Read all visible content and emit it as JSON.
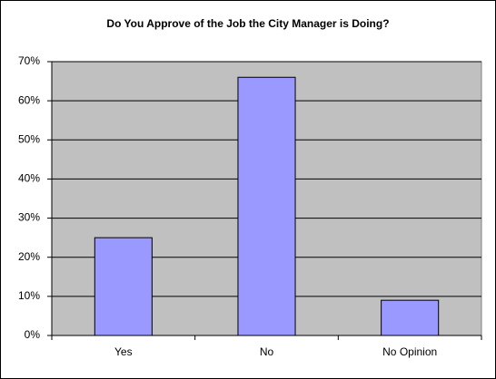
{
  "chart_data": {
    "type": "bar",
    "title": "Do You Approve of the Job the City Manager is Doing?",
    "categories": [
      "Yes",
      "No",
      "No Opinion"
    ],
    "values": [
      25,
      66,
      9
    ],
    "color": "#9999ff",
    "ylim": [
      0,
      70
    ],
    "yticks": [
      {
        "value": 0,
        "label": "0%"
      },
      {
        "value": 10,
        "label": "10%"
      },
      {
        "value": 20,
        "label": "20%"
      },
      {
        "value": 30,
        "label": "30%"
      },
      {
        "value": 40,
        "label": "40%"
      },
      {
        "value": 50,
        "label": "50%"
      },
      {
        "value": 60,
        "label": "60%"
      },
      {
        "value": 70,
        "label": "70%"
      }
    ],
    "grid": true
  }
}
